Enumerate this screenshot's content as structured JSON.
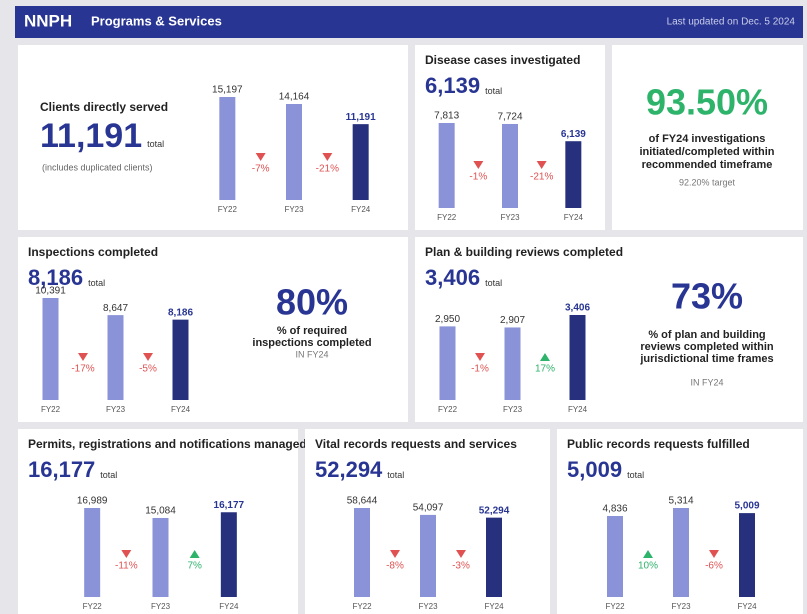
{
  "header": {
    "logo": "NNPH",
    "title": "Programs & Services",
    "updated": "Last updated on Dec. 5 2024"
  },
  "bar_colors": [
    "#8a93d8",
    "#8a93d8",
    "#27307d"
  ],
  "down_color": "#e05252",
  "up_color": "#2eb36b",
  "cards": [
    {
      "title": "Clients directly served",
      "total": "11,191",
      "total_unit": "total",
      "note": "(includes duplicated clients)",
      "chart": {
        "type": "bar",
        "categories": [
          "FY22",
          "FY23",
          "FY24"
        ],
        "values": [
          15197,
          14164,
          11191
        ],
        "value_labels": [
          "15,197",
          "14,164",
          "11,191"
        ],
        "changes": [
          "-7%",
          "-21%"
        ]
      }
    },
    {
      "title": "Disease cases investigated",
      "total": "6,139",
      "total_unit": "total",
      "chart": {
        "type": "bar",
        "categories": [
          "FY22",
          "FY23",
          "FY24"
        ],
        "values": [
          7813,
          7724,
          6139
        ],
        "value_labels": [
          "7,813",
          "7,724",
          "6,139"
        ],
        "changes": [
          "-1%",
          "-21%"
        ]
      }
    },
    {
      "stat": "93.50%",
      "stat_color": "#2eb36b",
      "description": [
        "of FY24 investigations",
        "initiated/completed within",
        "recommended timeframe"
      ],
      "footnote": "92.20% target"
    },
    {
      "title": "Inspections completed",
      "total": "8,186",
      "total_unit": "total",
      "chart": {
        "type": "bar",
        "categories": [
          "FY22",
          "FY23",
          "FY24"
        ],
        "values": [
          10391,
          8647,
          8186
        ],
        "value_labels": [
          "10,391",
          "8,647",
          "8,186"
        ],
        "changes": [
          "-17%",
          "-5%"
        ]
      },
      "stat": "80%",
      "stat_color": "#283593",
      "description": [
        "% of required",
        "inspections completed"
      ],
      "footnote": "IN FY24"
    },
    {
      "title": "Plan & building reviews completed",
      "total": "3,406",
      "total_unit": "total",
      "chart": {
        "type": "bar",
        "categories": [
          "FY22",
          "FY23",
          "FY24"
        ],
        "values": [
          2950,
          2907,
          3406
        ],
        "value_labels": [
          "2,950",
          "2,907",
          "3,406"
        ],
        "changes": [
          "-1%",
          "17%"
        ]
      },
      "stat": "73%",
      "stat_color": "#283593",
      "description": [
        "% of plan and building",
        "reviews completed within",
        "jurisdictional time frames"
      ],
      "footnote": "IN FY24"
    },
    {
      "title": "Permits, registrations and notifications managed",
      "total": "16,177",
      "total_unit": "total",
      "chart": {
        "type": "bar",
        "categories": [
          "FY22",
          "FY23",
          "FY24"
        ],
        "values": [
          16989,
          15084,
          16177
        ],
        "value_labels": [
          "16,989",
          "15,084",
          "16,177"
        ],
        "changes": [
          "-11%",
          "7%"
        ]
      }
    },
    {
      "title": "Vital records requests and services",
      "total": "52,294",
      "total_unit": "total",
      "chart": {
        "type": "bar",
        "categories": [
          "FY22",
          "FY23",
          "FY24"
        ],
        "values": [
          58644,
          54097,
          52294
        ],
        "value_labels": [
          "58,644",
          "54,097",
          "52,294"
        ],
        "changes": [
          "-8%",
          "-3%"
        ]
      }
    },
    {
      "title": "Public records requests fulfilled",
      "total": "5,009",
      "total_unit": "total",
      "chart": {
        "type": "bar",
        "categories": [
          "FY22",
          "FY23",
          "FY24"
        ],
        "values": [
          4836,
          5314,
          5009
        ],
        "value_labels": [
          "4,836",
          "5,314",
          "5,009"
        ],
        "changes": [
          "10%",
          "-6%"
        ]
      }
    }
  ]
}
